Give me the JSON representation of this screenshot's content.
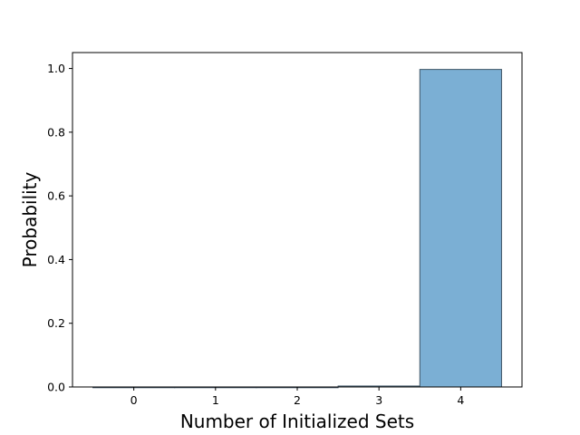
{
  "chart_data": {
    "type": "bar",
    "title": "",
    "xlabel": "Number of Initialized Sets",
    "ylabel": "Probability",
    "categories": [
      "0",
      "1",
      "2",
      "3",
      "4"
    ],
    "x": [
      0,
      1,
      2,
      3,
      4
    ],
    "values": [
      0.0,
      0.0,
      0.0,
      0.003,
      0.997
    ],
    "xlim": [
      -0.75,
      4.75
    ],
    "ylim": [
      0.0,
      1.05
    ],
    "yticks": [
      "0.0",
      "0.2",
      "0.4",
      "0.6",
      "0.8",
      "1.0"
    ],
    "ytick_values": [
      0.0,
      0.2,
      0.4,
      0.6,
      0.8,
      1.0
    ],
    "grid": false,
    "legend": false,
    "bar_color": "#7bafd4",
    "bar_edge_color": "#3f5566"
  }
}
